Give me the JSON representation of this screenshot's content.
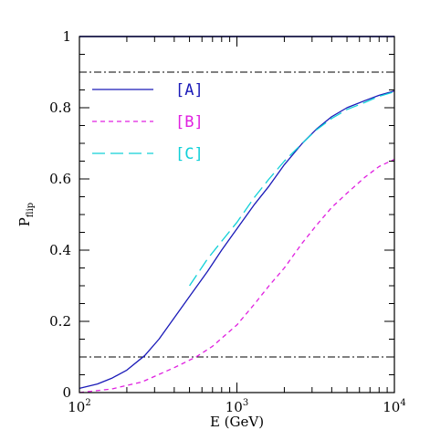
{
  "chart_data": {
    "type": "line",
    "x_scale": "log",
    "xlim": [
      100,
      10000
    ],
    "ylim": [
      0,
      1
    ],
    "xlabel": "E (GeV)",
    "ylabel_main": "P",
    "ylabel_sub": "flip",
    "x_ticks": [
      {
        "value": 100,
        "base": "10",
        "exp": "2"
      },
      {
        "value": 1000,
        "base": "10",
        "exp": "3"
      },
      {
        "value": 10000,
        "base": "10",
        "exp": "4"
      }
    ],
    "y_ticks": [
      {
        "value": 0,
        "label": "0"
      },
      {
        "value": 0.2,
        "label": "0.2"
      },
      {
        "value": 0.4,
        "label": "0.4"
      },
      {
        "value": 0.6,
        "label": "0.6"
      },
      {
        "value": 0.8,
        "label": "0.8"
      },
      {
        "value": 1,
        "label": "1"
      }
    ],
    "reference_lines": [
      {
        "y": 0.9,
        "style": "dash-dot",
        "color": "#000000"
      },
      {
        "y": 0.1,
        "style": "dash-dot",
        "color": "#000000"
      },
      {
        "y": 1.0,
        "style": "solid",
        "color": "#0000cc"
      }
    ],
    "series": [
      {
        "name": "[A]",
        "color": "#1a1ab8",
        "style": "solid",
        "x": [
          100,
          130,
          160,
          200,
          260,
          320,
          400,
          500,
          650,
          800,
          1000,
          1300,
          1600,
          2000,
          2600,
          3200,
          4000,
          5000,
          6500,
          8000,
          10000
        ],
        "y": [
          0.012,
          0.024,
          0.04,
          0.063,
          0.104,
          0.15,
          0.21,
          0.27,
          0.34,
          0.4,
          0.46,
          0.53,
          0.58,
          0.64,
          0.7,
          0.74,
          0.775,
          0.8,
          0.82,
          0.835,
          0.847
        ]
      },
      {
        "name": "[B]",
        "color": "#e020e0",
        "style": "short-dash",
        "x": [
          100,
          160,
          250,
          400,
          550,
          700,
          1000,
          1300,
          1600,
          2000,
          2600,
          3200,
          4000,
          5000,
          6500,
          8000,
          10000
        ],
        "y": [
          0.0,
          0.01,
          0.03,
          0.07,
          0.1,
          0.13,
          0.19,
          0.25,
          0.3,
          0.35,
          0.42,
          0.47,
          0.52,
          0.56,
          0.605,
          0.635,
          0.655
        ]
      },
      {
        "name": "[C]",
        "color": "#10d0d8",
        "style": "long-dash",
        "x": [
          500,
          650,
          800,
          1000,
          1300,
          1600,
          2000,
          2600,
          3200,
          4000,
          5000,
          6500,
          8000,
          10000
        ],
        "y": [
          0.3,
          0.375,
          0.425,
          0.478,
          0.55,
          0.6,
          0.65,
          0.7,
          0.738,
          0.77,
          0.795,
          0.815,
          0.832,
          0.845
        ]
      }
    ]
  }
}
